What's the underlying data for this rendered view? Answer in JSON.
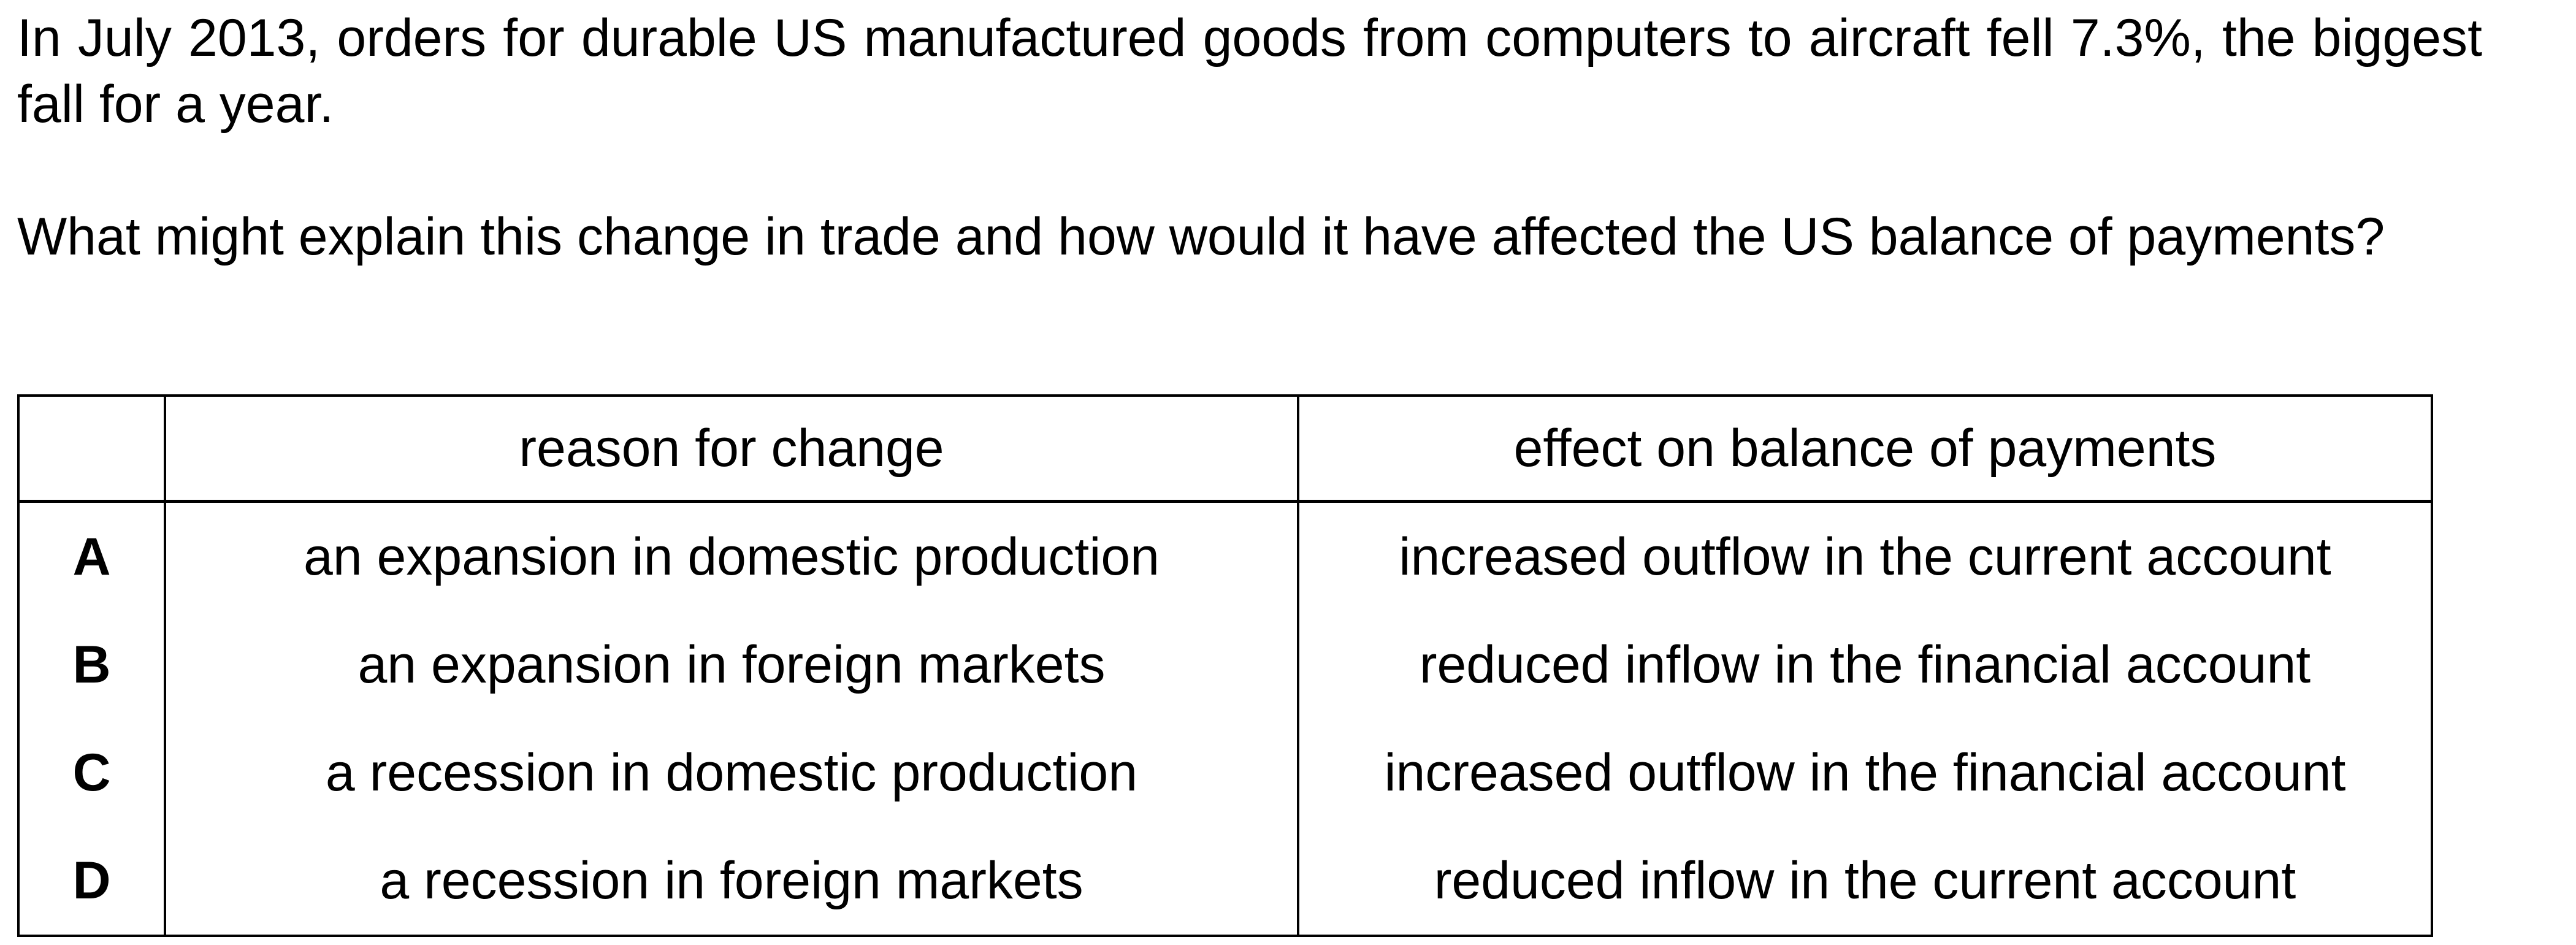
{
  "question": {
    "paragraph_1": "In July 2013, orders for durable US manufactured goods from computers to aircraft fell 7.3%, the biggest fall for a year.",
    "paragraph_2": "What might explain this change in trade and how would it have affected the US balance of payments?"
  },
  "table": {
    "headers": [
      "",
      "reason for change",
      "effect on balance of payments"
    ],
    "rows": [
      {
        "letter": "A",
        "reason": "an expansion in domestic production",
        "effect": "increased outflow in the current account"
      },
      {
        "letter": "B",
        "reason": "an expansion in foreign markets",
        "effect": "reduced inflow in the financial account"
      },
      {
        "letter": "C",
        "reason": "a recession in domestic production",
        "effect": "increased outflow in the financial account"
      },
      {
        "letter": "D",
        "reason": "a recession in foreign markets",
        "effect": "reduced inflow in the current account"
      }
    ]
  }
}
